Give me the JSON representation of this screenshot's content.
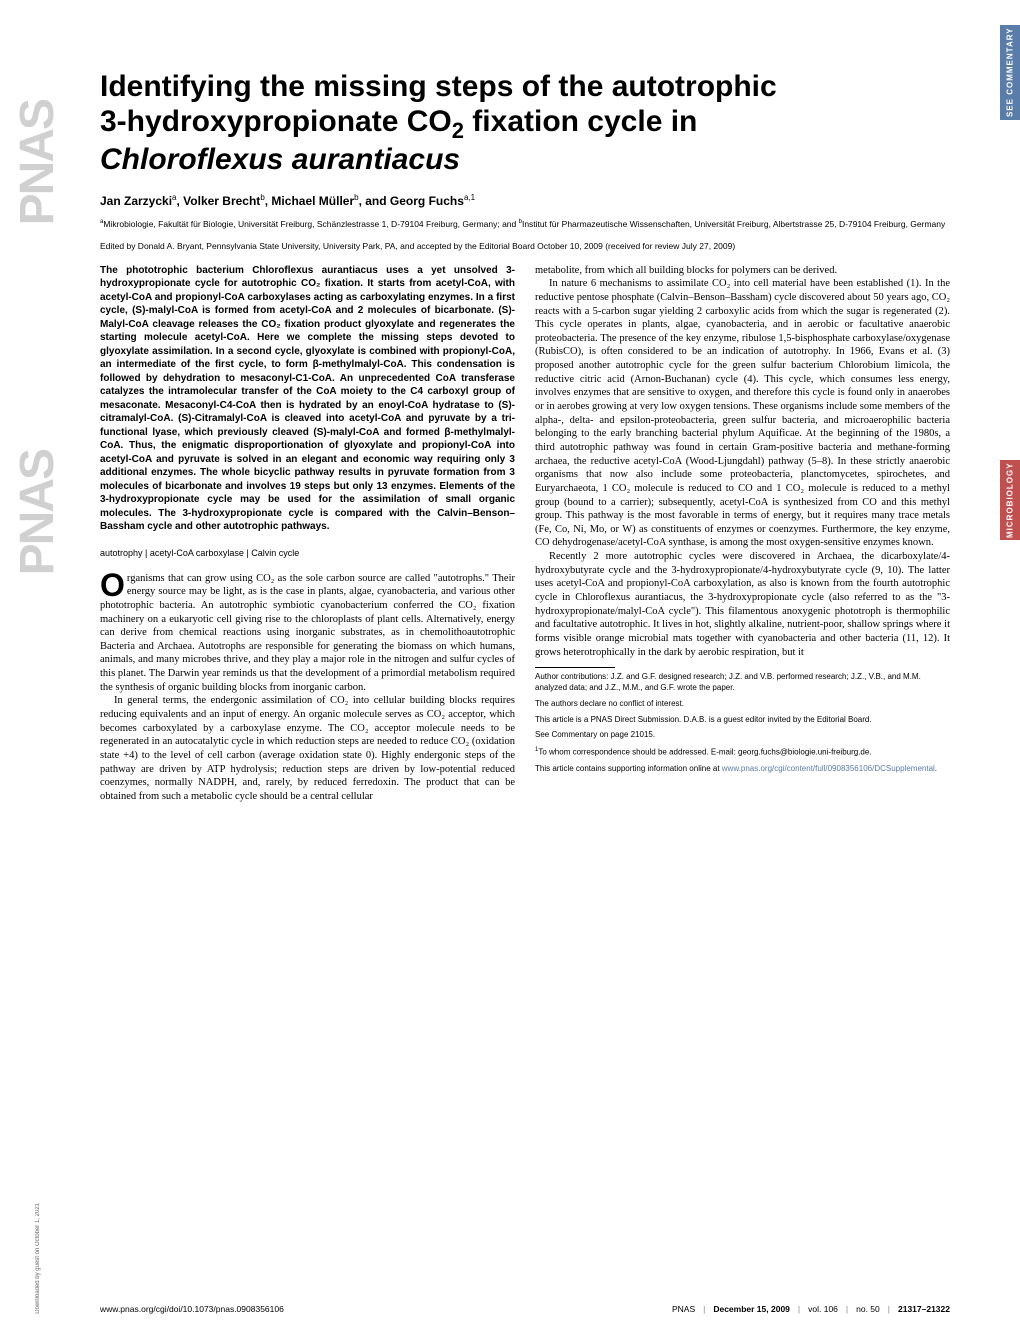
{
  "side_tabs": {
    "commentary": "SEE COMMENTARY",
    "microbiology": "MICROBIOLOGY"
  },
  "logo": "PNAS",
  "download_note": "Downloaded by guest on October 1, 2021",
  "title_line1": "Identifying the missing steps of the autotrophic",
  "title_line2_a": "3-hydroxypropionate CO",
  "title_line2_sub": "2",
  "title_line2_b": " fixation cycle in",
  "title_line3": "Chloroflexus aurantiacus",
  "authors_html": "Jan Zarzycki",
  "author_a": "Jan Zarzycki",
  "author_a_sup": "a",
  "author_b": ", Volker Brecht",
  "author_b_sup": "b",
  "author_c": ", Michael Müller",
  "author_c_sup": "b",
  "author_d": ", and Georg Fuchs",
  "author_d_sup": "a,1",
  "affil_a_sup": "a",
  "affil_a": "Mikrobiologie, Fakultät für Biologie, Universität Freiburg, Schänzlestrasse 1, D-79104 Freiburg, Germany; and ",
  "affil_b_sup": "b",
  "affil_b": "Institut für Pharmazeutische Wissenschaften, Universität Freiburg, Albertstrasse 25, D-79104 Freiburg, Germany",
  "edited": "Edited by Donald A. Bryant, Pennsylvania State University, University Park, PA, and accepted by the Editorial Board October 10, 2009 (received for review July 27, 2009)",
  "abstract": "The phototrophic bacterium Chloroflexus aurantiacus uses a yet unsolved 3-hydroxypropionate cycle for autotrophic CO₂ fixation. It starts from acetyl-CoA, with acetyl-CoA and propionyl-CoA carboxylases acting as carboxylating enzymes. In a first cycle, (S)-malyl-CoA is formed from acetyl-CoA and 2 molecules of bicarbonate. (S)-Malyl-CoA cleavage releases the CO₂ fixation product glyoxylate and regenerates the starting molecule acetyl-CoA. Here we complete the missing steps devoted to glyoxylate assimilation. In a second cycle, glyoxylate is combined with propionyl-CoA, an intermediate of the first cycle, to form β-methylmalyl-CoA. This condensation is followed by dehydration to mesaconyl-C1-CoA. An unprecedented CoA transferase catalyzes the intramolecular transfer of the CoA moiety to the C4 carboxyl group of mesaconate. Mesaconyl-C4-CoA then is hydrated by an enoyl-CoA hydratase to (S)-citramalyl-CoA. (S)-Citramalyl-CoA is cleaved into acetyl-CoA and pyruvate by a tri-functional lyase, which previously cleaved (S)-malyl-CoA and formed β-methylmalyl-CoA. Thus, the enigmatic disproportionation of glyoxylate and propionyl-CoA into acetyl-CoA and pyruvate is solved in an elegant and economic way requiring only 3 additional enzymes. The whole bicyclic pathway results in pyruvate formation from 3 molecules of bicarbonate and involves 19 steps but only 13 enzymes. Elements of the 3-hydroxypropionate cycle may be used for the assimilation of small organic molecules. The 3-hydroxypropionate cycle is compared with the Calvin–Benson–Bassham cycle and other autotrophic pathways.",
  "keywords": "autotrophy | acetyl-CoA carboxylase | Calvin cycle",
  "body_col1_p1": "rganisms that can grow using CO₂ as the sole carbon source are called \"autotrophs.\" Their energy source may be light, as is the case in plants, algae, cyanobacteria, and various other phototrophic bacteria. An autotrophic symbiotic cyanobacterium conferred the CO₂ fixation machinery on a eukaryotic cell giving rise to the chloroplasts of plant cells. Alternatively, energy can derive from chemical reactions using inorganic substrates, as in chemolithoautotrophic Bacteria and Archaea. Autotrophs are responsible for generating the biomass on which humans, animals, and many microbes thrive, and they play a major role in the nitrogen and sulfur cycles of this planet. The Darwin year reminds us that the development of a primordial metabolism required the synthesis of organic building blocks from inorganic carbon.",
  "body_col1_p2": "In general terms, the endergonic assimilation of CO₂ into cellular building blocks requires reducing equivalents and an input of energy. An organic molecule serves as CO₂ acceptor, which becomes carboxylated by a carboxylase enzyme. The CO₂ acceptor molecule needs to be regenerated in an autocatalytic cycle in which reduction steps are needed to reduce CO₂ (oxidation state +4) to the level of cell carbon (average oxidation state 0). Highly endergonic steps of the pathway are driven by ATP hydrolysis; reduction steps are driven by low-potential reduced coenzymes, normally NADPH, and, rarely, by reduced ferredoxin. The product that can be obtained from such a metabolic cycle should be a central cellular",
  "body_col2_p1": "metabolite, from which all building blocks for polymers can be derived.",
  "body_col2_p2": "In nature 6 mechanisms to assimilate CO₂ into cell material have been established (1). In the reductive pentose phosphate (Calvin–Benson–Bassham) cycle discovered about 50 years ago, CO₂ reacts with a 5-carbon sugar yielding 2 carboxylic acids from which the sugar is regenerated (2). This cycle operates in plants, algae, cyanobacteria, and in aerobic or facultative anaerobic proteobacteria. The presence of the key enzyme, ribulose 1,5-bisphosphate carboxylase/oxygenase (RubisCO), is often considered to be an indication of autotrophy. In 1966, Evans et al. (3) proposed another autotrophic cycle for the green sulfur bacterium Chlorobium limicola, the reductive citric acid (Arnon-Buchanan) cycle (4). This cycle, which consumes less energy, involves enzymes that are sensitive to oxygen, and therefore this cycle is found only in anaerobes or in aerobes growing at very low oxygen tensions. These organisms include some members of the alpha-, delta- and epsilon-proteobacteria, green sulfur bacteria, and microaerophilic bacteria belonging to the early branching bacterial phylum Aquificae. At the beginning of the 1980s, a third autotrophic pathway was found in certain Gram-positive bacteria and methane-forming archaea, the reductive acetyl-CoA (Wood-Ljungdahl) pathway (5–8). In these strictly anaerobic organisms that now also include some proteobacteria, planctomycetes, spirochetes, and Euryarchaeota, 1 CO₂ molecule is reduced to CO and 1 CO₂ molecule is reduced to a methyl group (bound to a carrier); subsequently, acetyl-CoA is synthesized from CO and this methyl group. This pathway is the most favorable in terms of energy, but it requires many trace metals (Fe, Co, Ni, Mo, or W) as constituents of enzymes or coenzymes. Furthermore, the key enzyme, CO dehydrogenase/acetyl-CoA synthase, is among the most oxygen-sensitive enzymes known.",
  "body_col2_p3": "Recently 2 more autotrophic cycles were discovered in Archaea, the dicarboxylate/4-hydroxybutyrate cycle and the 3-hydroxypropionate/4-hydroxybutyrate cycle (9, 10). The latter uses acetyl-CoA and propionyl-CoA carboxylation, as also is known from the fourth autotrophic cycle in Chloroflexus aurantiacus, the 3-hydroxypropionate cycle (also referred to as the \"3-hydroxypropionate/malyl-CoA cycle\"). This filamentous anoxygenic phototroph is thermophilic and facultative autotrophic. It lives in hot, slightly alkaline, nutrient-poor, shallow springs where it forms visible orange microbial mats together with cyanobacteria and other bacteria (11, 12). It grows heterotrophically in the dark by aerobic respiration, but it",
  "footnotes": {
    "contrib": "Author contributions: J.Z. and G.F. designed research; J.Z. and V.B. performed research; J.Z., V.B., and M.M. analyzed data; and J.Z., M.M., and G.F. wrote the paper.",
    "conflict": "The authors declare no conflict of interest.",
    "direct": "This article is a PNAS Direct Submission. D.A.B. is a guest editor invited by the Editorial Board.",
    "commentary": "See Commentary on page 21015.",
    "corresp_sup": "1",
    "corresp": "To whom correspondence should be addressed. E-mail: georg.fuchs@biologie.uni-freiburg.de.",
    "si_a": "This article contains supporting information online at ",
    "si_link": "www.pnas.org/cgi/content/full/0908356106/DCSupplemental",
    "si_b": "."
  },
  "footer": {
    "doi": "www.pnas.org/cgi/doi/10.1073/pnas.0908356106",
    "journal": "PNAS",
    "date": "December 15, 2009",
    "vol": "vol. 106",
    "issue": "no. 50",
    "pages": "21317–21322"
  },
  "colors": {
    "commentary_bg": "#5a7ca8",
    "microbiology_bg": "#c05050",
    "link": "#5a7ca8",
    "logo": "#d0d0d0"
  }
}
